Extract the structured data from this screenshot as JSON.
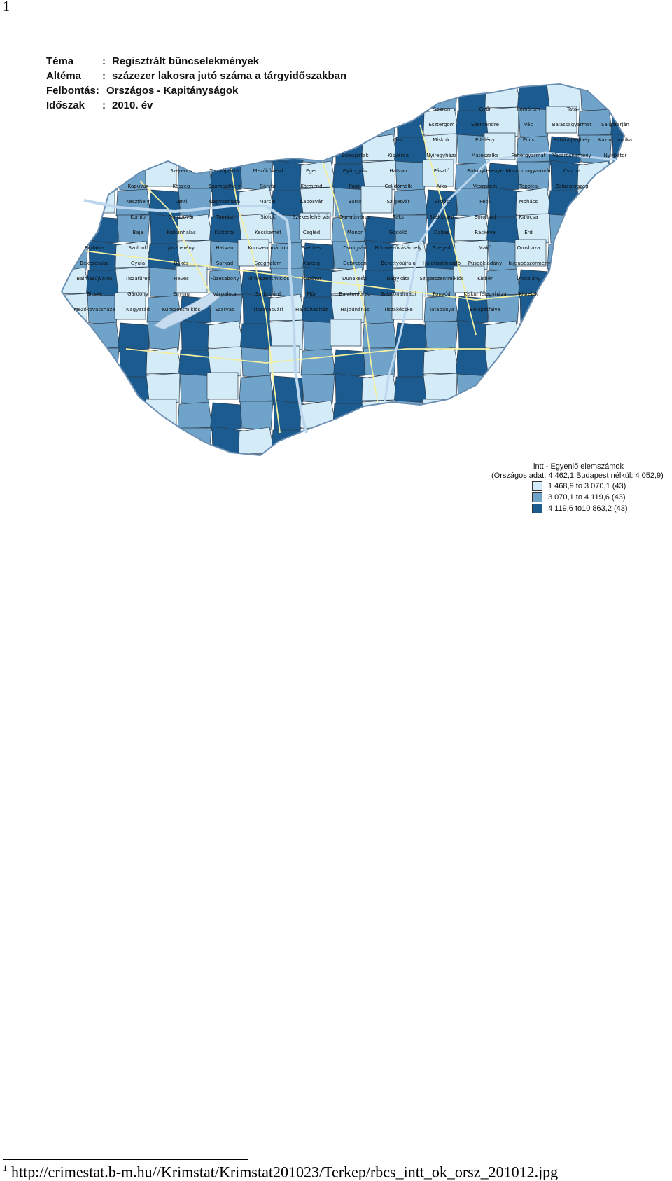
{
  "page": {
    "number": "1"
  },
  "header": {
    "rows": [
      {
        "key": "Téma",
        "sep": ":",
        "value": "Regisztrált bűncselekmények"
      },
      {
        "key": "Altéma",
        "sep": ":",
        "value": "százezer lakosra jutó száma a tárgyidőszakban"
      },
      {
        "key": "Felbontás:",
        "sep": "",
        "value": "Országos - Kapitányságok"
      },
      {
        "key": "Időszak",
        "sep": ":",
        "value": "2010. év"
      }
    ]
  },
  "colors": {
    "light": "#d4ecf8",
    "medium": "#6fa3c9",
    "dark": "#1b5b8f",
    "border": "#f5f0a0",
    "lake": "#c8dcef"
  },
  "legend": {
    "title": "intt - Egyenlő elemszámok",
    "subtitle": "(Országos adat: 4 462,1  Budapest nélkül: 4 052,9)",
    "items": [
      {
        "label": "1 468,9 to  3 070,1  (43)",
        "color": "#d4ecf8"
      },
      {
        "label": "3 070,1 to  4 119,6  (43)",
        "color": "#6fa3c9"
      },
      {
        "label": "4 119,6 to10 863,2  (43)",
        "color": "#1b5b8f"
      }
    ]
  },
  "map": {
    "labels": [
      "Sopron",
      "Győr",
      "Komárom",
      "Tata",
      "Esztergom",
      "Szentendre",
      "Vác",
      "Balassagyarmat",
      "Salgótarján",
      "Ózd",
      "Miskolc",
      "Edelény",
      "Encs",
      "Sátoraljaújhely",
      "Kazincbarcika",
      "Sárospatak",
      "Kisvárda",
      "Nyíregyháza",
      "Mátészalka",
      "Fehérgyarmat",
      "Vásárosnamény",
      "Nyírbátor",
      "Szerencs",
      "Tiszaújváros",
      "Mezőkövesd",
      "Eger",
      "Gyöngyös",
      "Hatvan",
      "Pásztó",
      "Bátonyterenye",
      "Mosonmagyaróvár",
      "Csorna",
      "Kapuvár",
      "Kőszeg",
      "Szombathely",
      "Sárvár",
      "Körmend",
      "Pápa",
      "Celldömölk",
      "Ajka",
      "Veszprém",
      "Tapolca",
      "Zalaegerszeg",
      "Keszthely",
      "Lenti",
      "Nagykanizsa",
      "Marcali",
      "Kaposvár",
      "Barcs",
      "Szigetvár",
      "Siklós",
      "Pécs",
      "Mohács",
      "Komló",
      "Dombóvár",
      "Tamási",
      "Siófok",
      "Székesfehérvár",
      "Dunaújváros",
      "Paks",
      "Szekszárd",
      "Bonyhád",
      "Kalocsa",
      "Baja",
      "Kiskunhalas",
      "Kiskőrös",
      "Kecskemét",
      "Cegléd",
      "Monor",
      "Gödöllő",
      "Dabas",
      "Ráckeve",
      "Érd",
      "Budaörs",
      "Szolnok",
      "Jászberény",
      "Hatvan",
      "Kunszentmárton",
      "Szentes",
      "Csongrád",
      "Hódmezővásárhely",
      "Szeged",
      "Makó",
      "Orosháza",
      "Békéscsaba",
      "Gyula",
      "Békés",
      "Sarkad",
      "Szeghalom",
      "Karcag",
      "Debrecen",
      "Berettyóújfalu",
      "Hajdúszoboszló",
      "Püspökladány",
      "Hajdúböszörmény",
      "Balmazújváros",
      "Tiszafüred",
      "Heves",
      "Füzesabony",
      "Törökszentmiklós",
      "Mezőtúr",
      "Dunakeszi",
      "Nagykáta",
      "Szigetszentmiklós",
      "Kisbér",
      "Oroszlány",
      "Bicske",
      "Gárdony",
      "Enying",
      "Várpalota",
      "Sárbogárd",
      "Mór",
      "Balatonfüred",
      "Balatonalmádi",
      "Fonyód",
      "Kiskunfélegyháza",
      "Kistelek",
      "Mezőkovácsháza",
      "Nagyatád",
      "Kunszentmiklós",
      "Szarvas",
      "Tiszavasvári",
      "Hajdúhadház",
      "Hajdúnánás",
      "Tiszakécske",
      "Tatabánya",
      "Bélapátfalva"
    ]
  }
}
